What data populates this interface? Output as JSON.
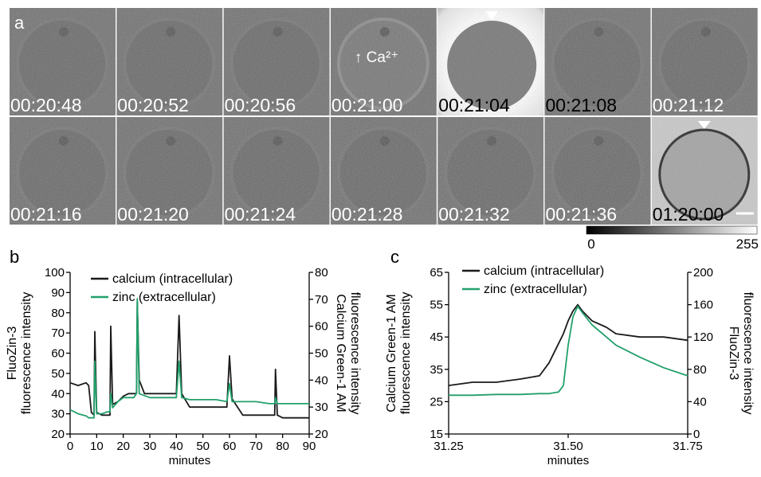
{
  "panel_labels": [
    "a",
    "b",
    "c"
  ],
  "frames": [
    {
      "time": "00:20:48",
      "text_color": "#ffffff"
    },
    {
      "time": "00:20:52",
      "text_color": "#ffffff"
    },
    {
      "time": "00:20:56",
      "text_color": "#ffffff"
    },
    {
      "time": "00:21:00",
      "text_color": "#ffffff"
    },
    {
      "time": "00:21:04",
      "text_color": "#000000"
    },
    {
      "time": "00:21:08",
      "text_color": "#000000"
    },
    {
      "time": "00:21:12",
      "text_color": "#ffffff"
    },
    {
      "time": "00:21:16",
      "text_color": "#ffffff"
    },
    {
      "time": "00:21:20",
      "text_color": "#ffffff"
    },
    {
      "time": "00:21:24",
      "text_color": "#ffffff"
    },
    {
      "time": "00:21:28",
      "text_color": "#ffffff"
    },
    {
      "time": "00:21:32",
      "text_color": "#ffffff"
    },
    {
      "time": "00:21:36",
      "text_color": "#ffffff"
    },
    {
      "time": "01:20:00",
      "text_color": "#000000"
    }
  ],
  "annotation": "↑ Ca²⁺",
  "colorbar": {
    "range": [
      0,
      255
    ]
  },
  "chart_data": [
    {
      "type": "line",
      "xlabel": "minutes",
      "ylabel": [
        "FluoZin-3",
        "fluorescence intensity"
      ],
      "y2label": [
        "Calcium Green-1 AM",
        "fluorescence intensity"
      ],
      "x": [
        0,
        3,
        6,
        7,
        8,
        9,
        9.3,
        10,
        12,
        14,
        15,
        15.3,
        16,
        18,
        20,
        22,
        24,
        25,
        25.3,
        26,
        28,
        30,
        35,
        40,
        41,
        42,
        45,
        50,
        55,
        59,
        60,
        61,
        65,
        70,
        75,
        77,
        77.3,
        78,
        80,
        85,
        90
      ],
      "xlim": [
        0,
        90
      ],
      "xticks": [
        0,
        10,
        20,
        30,
        40,
        50,
        60,
        70,
        80,
        90
      ],
      "ylim": [
        20,
        100
      ],
      "yticks": [
        20,
        30,
        40,
        50,
        60,
        70,
        80,
        90,
        100
      ],
      "y2lim": [
        20,
        80
      ],
      "y2ticks": [
        20,
        30,
        40,
        50,
        60,
        70,
        80
      ],
      "series": [
        {
          "name": "calcium (intracellular)",
          "color": "#1a1a1a",
          "axis": "y2",
          "values": [
            39,
            38,
            39,
            38,
            28,
            27,
            58,
            28,
            27,
            27,
            27,
            60,
            31,
            32,
            34,
            35,
            35,
            35,
            69,
            40,
            35,
            35,
            35,
            35,
            64,
            35,
            30,
            30,
            30,
            30,
            49,
            33,
            27,
            27,
            27,
            27,
            44,
            27,
            26,
            26,
            26
          ]
        },
        {
          "name": "zinc (extracellular)",
          "color": "#22a06b",
          "axis": "y",
          "values": [
            32,
            30,
            29,
            28,
            28,
            28,
            56,
            30,
            30,
            31,
            31,
            40,
            33,
            36,
            38,
            38,
            38,
            40,
            87,
            40,
            39,
            38,
            38,
            38,
            56,
            38,
            37,
            37,
            37,
            36,
            45,
            36,
            36,
            36,
            35,
            35,
            38,
            35,
            35,
            35,
            35
          ]
        }
      ]
    },
    {
      "type": "line",
      "xlabel": "minutes",
      "ylabel": [
        "Calcium Green-1 AM",
        "fluorescence intensity"
      ],
      "y2label": [
        "FluoZin-3",
        "fluorescence intensity"
      ],
      "x": [
        31.25,
        31.3,
        31.35,
        31.4,
        31.44,
        31.46,
        31.48,
        31.49,
        31.5,
        31.51,
        31.52,
        31.53,
        31.55,
        31.58,
        31.6,
        31.65,
        31.7,
        31.75
      ],
      "xlim": [
        31.25,
        31.75
      ],
      "xticks": [
        31.25,
        {
          "value": 31.5,
          "label": "31.50"
        },
        31.75
      ],
      "ylim": [
        15,
        65
      ],
      "yticks": [
        15,
        25,
        35,
        45,
        55,
        65
      ],
      "y2lim": [
        0,
        200
      ],
      "y2ticks": [
        0,
        40,
        80,
        120,
        160,
        200
      ],
      "series": [
        {
          "name": "calcium (intracellular)",
          "color": "#1a1a1a",
          "axis": "y",
          "values": [
            30,
            31,
            31,
            32,
            33,
            37,
            43,
            46,
            50,
            53,
            55,
            53,
            50,
            48,
            46,
            45,
            45,
            44
          ]
        },
        {
          "name": "zinc (extracellular)",
          "color": "#22a06b",
          "axis": "y2",
          "values": [
            48,
            48,
            49,
            49,
            50,
            50,
            52,
            60,
            110,
            145,
            158,
            150,
            135,
            120,
            110,
            95,
            82,
            72
          ]
        }
      ]
    }
  ]
}
